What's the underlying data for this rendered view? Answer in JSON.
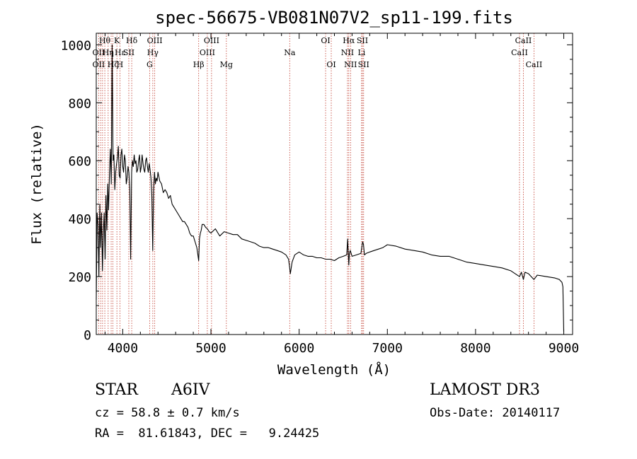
{
  "chart_data": {
    "type": "line",
    "title": "spec-56675-VB081N07V2_sp11-199.fits",
    "xlabel": "Wavelength (Å)",
    "ylabel": "Flux (relative)",
    "xlim": [
      3700,
      9100
    ],
    "ylim": [
      0,
      1040
    ],
    "xticks": [
      4000,
      5000,
      6000,
      7000,
      8000,
      9000
    ],
    "yticks": [
      0,
      200,
      400,
      600,
      800,
      1000
    ],
    "grid": false,
    "series": [
      {
        "name": "Flux",
        "x": [
          3700,
          3710,
          3720,
          3730,
          3740,
          3750,
          3760,
          3770,
          3780,
          3790,
          3800,
          3810,
          3820,
          3830,
          3840,
          3850,
          3860,
          3870,
          3880,
          3890,
          3900,
          3910,
          3920,
          3930,
          3940,
          3950,
          3960,
          3970,
          3980,
          3990,
          4000,
          4010,
          4020,
          4030,
          4040,
          4050,
          4060,
          4070,
          4080,
          4090,
          4101,
          4110,
          4120,
          4130,
          4140,
          4150,
          4160,
          4170,
          4180,
          4190,
          4200,
          4210,
          4220,
          4230,
          4240,
          4250,
          4260,
          4270,
          4280,
          4290,
          4300,
          4310,
          4320,
          4330,
          4340,
          4350,
          4360,
          4370,
          4380,
          4390,
          4400,
          4420,
          4440,
          4460,
          4480,
          4500,
          4520,
          4540,
          4560,
          4580,
          4600,
          4620,
          4640,
          4660,
          4680,
          4700,
          4720,
          4740,
          4760,
          4780,
          4800,
          4820,
          4840,
          4850,
          4861,
          4870,
          4880,
          4890,
          4900,
          4920,
          4940,
          4960,
          4980,
          5000,
          5050,
          5100,
          5150,
          5200,
          5250,
          5300,
          5350,
          5400,
          5450,
          5500,
          5550,
          5600,
          5650,
          5700,
          5750,
          5800,
          5850,
          5880,
          5893,
          5900,
          5920,
          5950,
          6000,
          6050,
          6100,
          6150,
          6200,
          6250,
          6300,
          6350,
          6400,
          6450,
          6500,
          6540,
          6550,
          6563,
          6570,
          6580,
          6600,
          6650,
          6700,
          6710,
          6720,
          6730,
          6740,
          6760,
          6800,
          6850,
          6900,
          6950,
          7000,
          7100,
          7200,
          7300,
          7400,
          7500,
          7600,
          7700,
          7800,
          7900,
          8000,
          8100,
          8200,
          8300,
          8400,
          8498,
          8520,
          8542,
          8560,
          8600,
          8662,
          8700,
          8800,
          8900,
          8950,
          8980,
          8990,
          9000
        ],
        "y": [
          120,
          420,
          380,
          200,
          450,
          300,
          420,
          220,
          350,
          420,
          260,
          480,
          360,
          520,
          430,
          560,
          640,
          520,
          1000,
          600,
          620,
          500,
          560,
          590,
          610,
          650,
          550,
          540,
          620,
          640,
          580,
          560,
          620,
          600,
          520,
          540,
          580,
          560,
          500,
          260,
          560,
          600,
          580,
          620,
          590,
          600,
          560,
          570,
          600,
          620,
          560,
          580,
          620,
          590,
          570,
          560,
          600,
          610,
          580,
          560,
          590,
          570,
          540,
          480,
          290,
          500,
          560,
          520,
          540,
          530,
          560,
          530,
          520,
          490,
          500,
          490,
          470,
          480,
          450,
          440,
          430,
          420,
          410,
          400,
          390,
          390,
          380,
          370,
          350,
          340,
          340,
          320,
          300,
          280,
          255,
          330,
          350,
          360,
          380,
          380,
          370,
          365,
          355,
          350,
          365,
          340,
          355,
          350,
          345,
          345,
          330,
          325,
          320,
          315,
          305,
          300,
          300,
          295,
          290,
          285,
          275,
          260,
          230,
          210,
          250,
          275,
          285,
          275,
          270,
          270,
          265,
          265,
          260,
          260,
          255,
          265,
          270,
          275,
          330,
          240,
          280,
          290,
          270,
          275,
          280,
          300,
          320,
          310,
          275,
          280,
          285,
          290,
          295,
          300,
          310,
          305,
          295,
          290,
          285,
          275,
          270,
          270,
          260,
          250,
          245,
          240,
          235,
          230,
          220,
          200,
          215,
          190,
          215,
          210,
          190,
          205,
          200,
          195,
          190,
          180,
          165,
          10
        ]
      }
    ],
    "line_labels": [
      {
        "text": "Hθ",
        "x": 3797,
        "row": 1
      },
      {
        "text": "OII",
        "x": 3727,
        "row": 2
      },
      {
        "text": "OII",
        "x": 3727,
        "row": 3
      },
      {
        "text": "Hη",
        "x": 3835,
        "row": 2
      },
      {
        "text": "Hζ",
        "x": 3889,
        "row": 3
      },
      {
        "text": "K",
        "x": 3934,
        "row": 1
      },
      {
        "text": "Hε",
        "x": 3970,
        "row": 2
      },
      {
        "text": "H",
        "x": 3968,
        "row": 3
      },
      {
        "text": "SII",
        "x": 4069,
        "row": 2
      },
      {
        "text": "Hδ",
        "x": 4102,
        "row": 1
      },
      {
        "text": "OIII",
        "x": 4363,
        "row": 1
      },
      {
        "text": "Hγ",
        "x": 4341,
        "row": 2
      },
      {
        "text": "G",
        "x": 4305,
        "row": 3
      },
      {
        "text": "Hβ",
        "x": 4861,
        "row": 3
      },
      {
        "text": "OIII",
        "x": 5007,
        "row": 1
      },
      {
        "text": "OIII",
        "x": 4959,
        "row": 2
      },
      {
        "text": "Mg",
        "x": 5175,
        "row": 3
      },
      {
        "text": "Na",
        "x": 5893,
        "row": 2
      },
      {
        "text": "OI",
        "x": 6300,
        "row": 1
      },
      {
        "text": "OI",
        "x": 6364,
        "row": 3
      },
      {
        "text": "Hα",
        "x": 6563,
        "row": 1
      },
      {
        "text": "NII",
        "x": 6548,
        "row": 2
      },
      {
        "text": "NII",
        "x": 6583,
        "row": 3
      },
      {
        "text": "SII",
        "x": 6717,
        "row": 1
      },
      {
        "text": "Li",
        "x": 6708,
        "row": 2
      },
      {
        "text": "SII",
        "x": 6731,
        "row": 3
      },
      {
        "text": "CaII",
        "x": 8542,
        "row": 1
      },
      {
        "text": "CaII",
        "x": 8498,
        "row": 2
      },
      {
        "text": "CaII",
        "x": 8662,
        "row": 3
      }
    ],
    "marker_lines": [
      3727,
      3750,
      3771,
      3797,
      3835,
      3869,
      3889,
      3934,
      3968,
      4069,
      4102,
      4305,
      4341,
      4363,
      4861,
      4959,
      5007,
      5175,
      5893,
      6300,
      6364,
      6548,
      6563,
      6583,
      6708,
      6717,
      6731,
      8498,
      8542,
      8662
    ]
  },
  "info": {
    "object_class": "STAR",
    "subclass": "A6IV",
    "survey": "LAMOST DR3",
    "cz": "cz = 58.8 ± 0.7 km/s",
    "obs_date": "Obs-Date: 20140117",
    "coords": "RA =  81.61843, DEC =   9.24425"
  },
  "colors": {
    "background": "#ffffff",
    "axes": "#000000",
    "spectrum": "#000000",
    "marker_lines": "#c0392b"
  }
}
